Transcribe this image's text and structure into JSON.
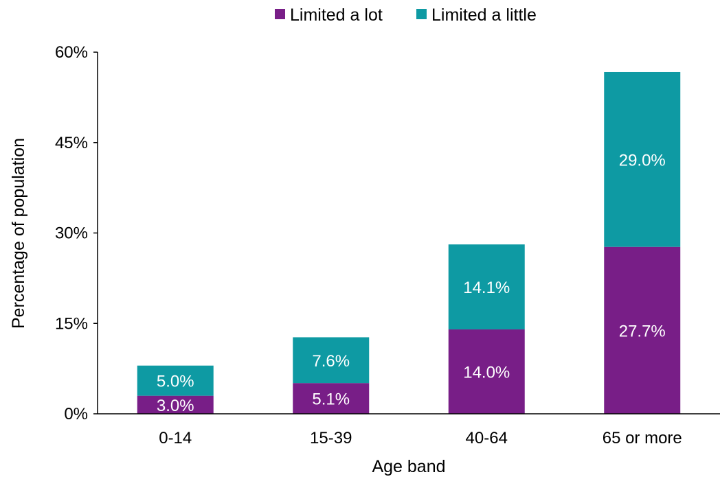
{
  "chart_data": {
    "type": "bar",
    "stacked": true,
    "title": "",
    "xlabel": "Age band",
    "ylabel": "Percentage of population",
    "categories": [
      "0-14",
      "15-39",
      "40-64",
      "65 or more"
    ],
    "series": [
      {
        "name": "Limited a lot",
        "color": "#781e87",
        "values": [
          3.0,
          5.1,
          14.0,
          27.7
        ],
        "labels": [
          "3.0%",
          "5.1%",
          "14.0%",
          "27.7%"
        ]
      },
      {
        "name": "Limited a little",
        "color": "#0e9aa3",
        "values": [
          5.0,
          7.6,
          14.1,
          29.0
        ],
        "labels": [
          "5.0%",
          "7.6%",
          "14.1%",
          "29.0%"
        ]
      }
    ],
    "ylim": [
      0,
      60
    ],
    "yticks": [
      0,
      15,
      30,
      45,
      60
    ],
    "ytick_labels": [
      "0%",
      "15%",
      "30%",
      "45%",
      "60%"
    ],
    "grid": false,
    "legend_position": "top-center"
  }
}
